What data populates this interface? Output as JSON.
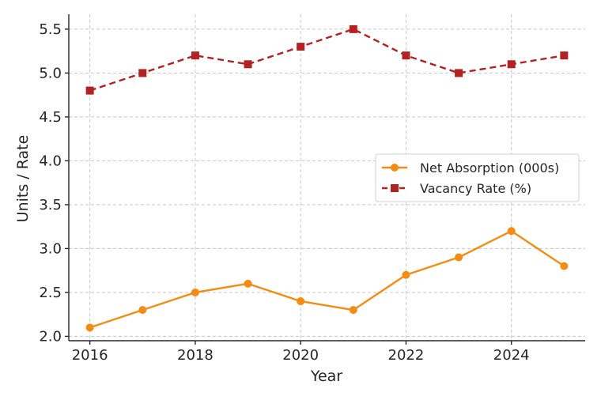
{
  "chart_data": {
    "type": "line",
    "title": "",
    "xlabel": "Year",
    "ylabel": "Units / Rate",
    "x": [
      2016,
      2017,
      2018,
      2019,
      2020,
      2021,
      2022,
      2023,
      2024,
      2025
    ],
    "xticks": [
      2016,
      2018,
      2020,
      2022,
      2024
    ],
    "yticks": [
      2.0,
      2.5,
      3.0,
      3.5,
      4.0,
      4.5,
      5.0,
      5.5
    ],
    "xlim": [
      2015.6,
      2025.4
    ],
    "ylim": [
      1.95,
      5.67
    ],
    "grid": true,
    "legend_position": "right",
    "series": [
      {
        "name": "Net Absorption (000s)",
        "values": [
          2.1,
          2.3,
          2.5,
          2.6,
          2.4,
          2.3,
          2.7,
          2.9,
          3.2,
          2.8
        ],
        "color": "#F28C13",
        "line_style": "solid",
        "marker": "circle"
      },
      {
        "name": "Vacancy Rate (%)",
        "values": [
          4.8,
          5.0,
          5.2,
          5.1,
          5.3,
          5.5,
          5.2,
          5.0,
          5.1,
          5.2
        ],
        "color": "#B22222",
        "line_style": "dashed",
        "marker": "square"
      }
    ]
  }
}
